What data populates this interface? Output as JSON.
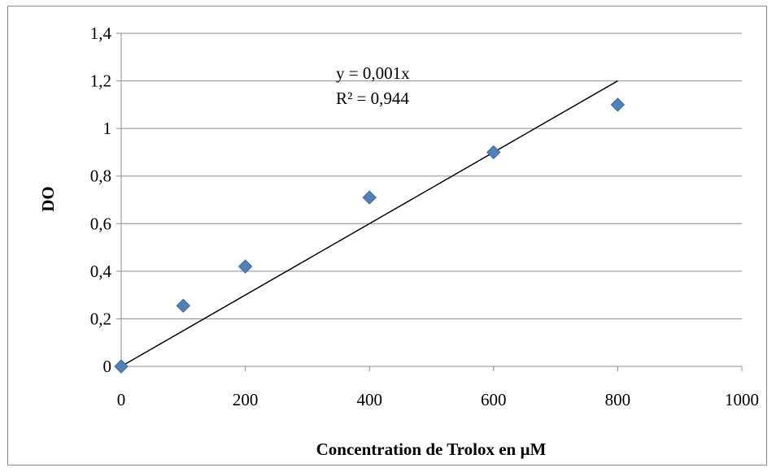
{
  "chart_data": {
    "type": "scatter",
    "xlabel": "Concentration de Trolox en µM",
    "ylabel": "DO",
    "xlim": [
      0,
      1000
    ],
    "ylim": [
      0,
      1.4
    ],
    "x_ticks": [
      "0",
      "200",
      "400",
      "600",
      "800",
      "1000"
    ],
    "y_ticks": [
      "0",
      "0,2",
      "0,4",
      "0,6",
      "0,8",
      "1",
      "1,2",
      "1,4"
    ],
    "grid": "horizontal",
    "legend": "none",
    "series": [
      {
        "x": [
          0,
          100,
          200,
          400,
          600,
          800
        ],
        "y": [
          0,
          0.255,
          0.42,
          0.71,
          0.9,
          1.1
        ],
        "marker": "diamond",
        "color": "#4f81bd"
      }
    ],
    "trendline": {
      "slope": 0.0015,
      "intercept": 0,
      "x_range": [
        0,
        800
      ],
      "color": "#000000",
      "equation": "y = 0,001x",
      "r_squared": "R² = 0,944"
    }
  }
}
